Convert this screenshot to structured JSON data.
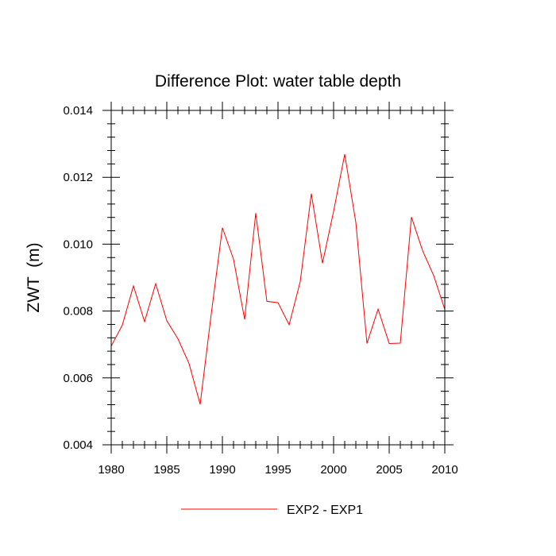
{
  "chart_data": {
    "type": "line",
    "title": "Difference Plot: water table depth",
    "xlabel": "",
    "ylabel": "ZWT  (m)",
    "xlim": [
      1980,
      2010
    ],
    "ylim": [
      0.004,
      0.014
    ],
    "x_ticks": [
      1980,
      1985,
      1990,
      1995,
      2000,
      2005,
      2010
    ],
    "x_tick_labels": [
      "1980",
      "1985",
      "1990",
      "1995",
      "2000",
      "2005",
      "2010"
    ],
    "y_ticks": [
      0.004,
      0.006,
      0.008,
      0.01,
      0.012,
      0.014
    ],
    "y_tick_labels": [
      "0.004",
      "0.006",
      "0.008",
      "0.010",
      "0.012",
      "0.014"
    ],
    "grid": false,
    "legend_position": "bottom-center",
    "series": [
      {
        "name": "EXP2 - EXP1",
        "color": "#ff0000",
        "x": [
          1980,
          1981,
          1982,
          1983,
          1984,
          1985,
          1986,
          1987,
          1988,
          1989,
          1990,
          1991,
          1992,
          1993,
          1994,
          1995,
          1996,
          1997,
          1998,
          1999,
          2000,
          2001,
          2002,
          2003,
          2004,
          2005,
          2006,
          2007,
          2008,
          2009,
          2010
        ],
        "values": [
          0.00695,
          0.00758,
          0.00875,
          0.00768,
          0.00882,
          0.00771,
          0.00717,
          0.00643,
          0.00521,
          0.00792,
          0.01049,
          0.00955,
          0.00775,
          0.01093,
          0.00829,
          0.00825,
          0.00759,
          0.00888,
          0.01151,
          0.00943,
          0.01098,
          0.01269,
          0.01065,
          0.00703,
          0.00806,
          0.00703,
          0.00704,
          0.01081,
          0.00981,
          0.00906,
          0.00805
        ]
      }
    ]
  }
}
